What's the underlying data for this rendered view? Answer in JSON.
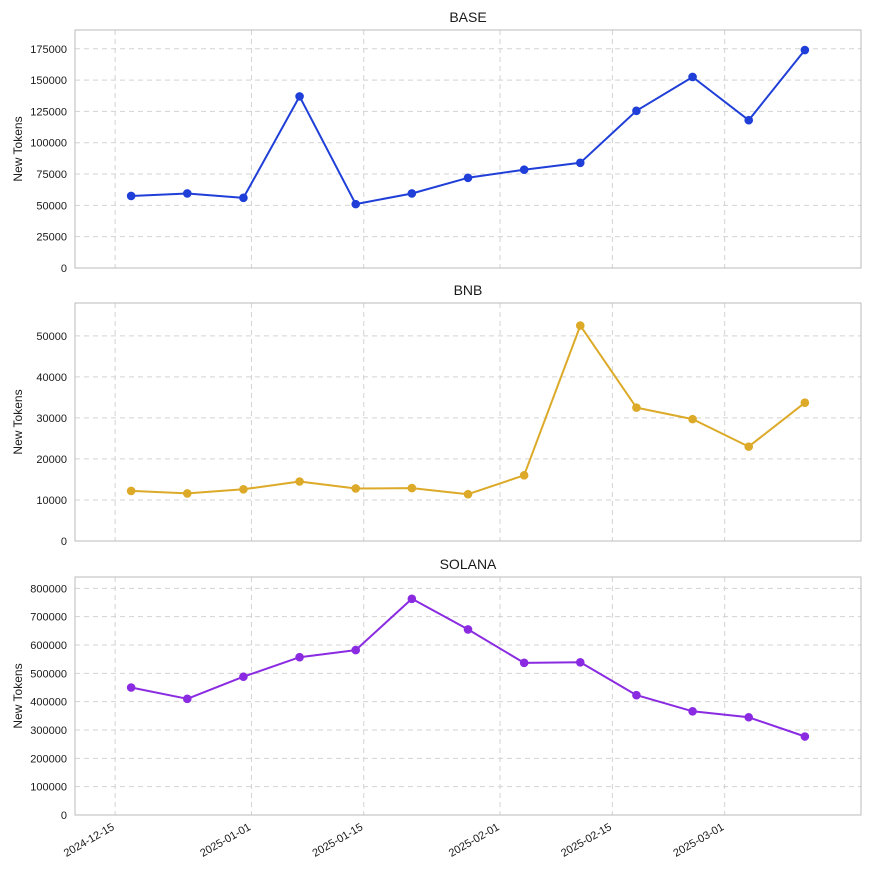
{
  "chart_data": [
    {
      "type": "line",
      "title": "BASE",
      "xlabel": "",
      "ylabel": "New Tokens",
      "color": "#1f3fd8",
      "x": [
        "2024-12-17",
        "2024-12-24",
        "2024-12-31",
        "2025-01-07",
        "2025-01-14",
        "2025-01-21",
        "2025-01-28",
        "2025-02-04",
        "2025-02-11",
        "2025-02-18",
        "2025-02-25",
        "2025-03-04",
        "2025-03-11"
      ],
      "values": [
        57500,
        59500,
        56000,
        137000,
        51000,
        59500,
        72000,
        78500,
        84000,
        125500,
        152500,
        118000,
        174000
      ],
      "ylim": [
        0,
        190000
      ],
      "yticks": [
        0,
        25000,
        50000,
        75000,
        100000,
        125000,
        150000,
        175000
      ],
      "grid": true
    },
    {
      "type": "line",
      "title": "BNB",
      "xlabel": "",
      "ylabel": "New Tokens",
      "color": "#dcaa28",
      "x": [
        "2024-12-17",
        "2024-12-24",
        "2024-12-31",
        "2025-01-07",
        "2025-01-14",
        "2025-01-21",
        "2025-01-28",
        "2025-02-04",
        "2025-02-11",
        "2025-02-18",
        "2025-02-25",
        "2025-03-04",
        "2025-03-11"
      ],
      "values": [
        12200,
        11600,
        12600,
        14500,
        12800,
        12900,
        11400,
        16000,
        52500,
        32500,
        29700,
        23000,
        33700
      ],
      "ylim": [
        0,
        58000
      ],
      "yticks": [
        0,
        10000,
        20000,
        30000,
        40000,
        50000
      ],
      "grid": true
    },
    {
      "type": "line",
      "title": "SOLANA",
      "xlabel": "",
      "ylabel": "New Tokens",
      "color": "#8a2be2",
      "x": [
        "2024-12-17",
        "2024-12-24",
        "2024-12-31",
        "2025-01-07",
        "2025-01-14",
        "2025-01-21",
        "2025-01-28",
        "2025-02-04",
        "2025-02-11",
        "2025-02-18",
        "2025-02-25",
        "2025-03-04",
        "2025-03-11"
      ],
      "values": [
        450000,
        410000,
        488000,
        557000,
        582000,
        763000,
        655000,
        537000,
        539000,
        423000,
        366000,
        345000,
        277000
      ],
      "ylim": [
        0,
        840000
      ],
      "yticks": [
        0,
        100000,
        200000,
        300000,
        400000,
        500000,
        600000,
        700000,
        800000
      ],
      "grid": true
    }
  ],
  "x_axis": {
    "range": [
      "2024-12-10",
      "2025-03-18"
    ],
    "ticks": [
      "2024-12-15",
      "2025-01-01",
      "2025-01-15",
      "2025-02-01",
      "2025-02-15",
      "2025-03-01"
    ]
  },
  "colors": {
    "grid": "#d3d3d3",
    "frame": "#bbbbbb",
    "text": "#1a1a1a"
  }
}
